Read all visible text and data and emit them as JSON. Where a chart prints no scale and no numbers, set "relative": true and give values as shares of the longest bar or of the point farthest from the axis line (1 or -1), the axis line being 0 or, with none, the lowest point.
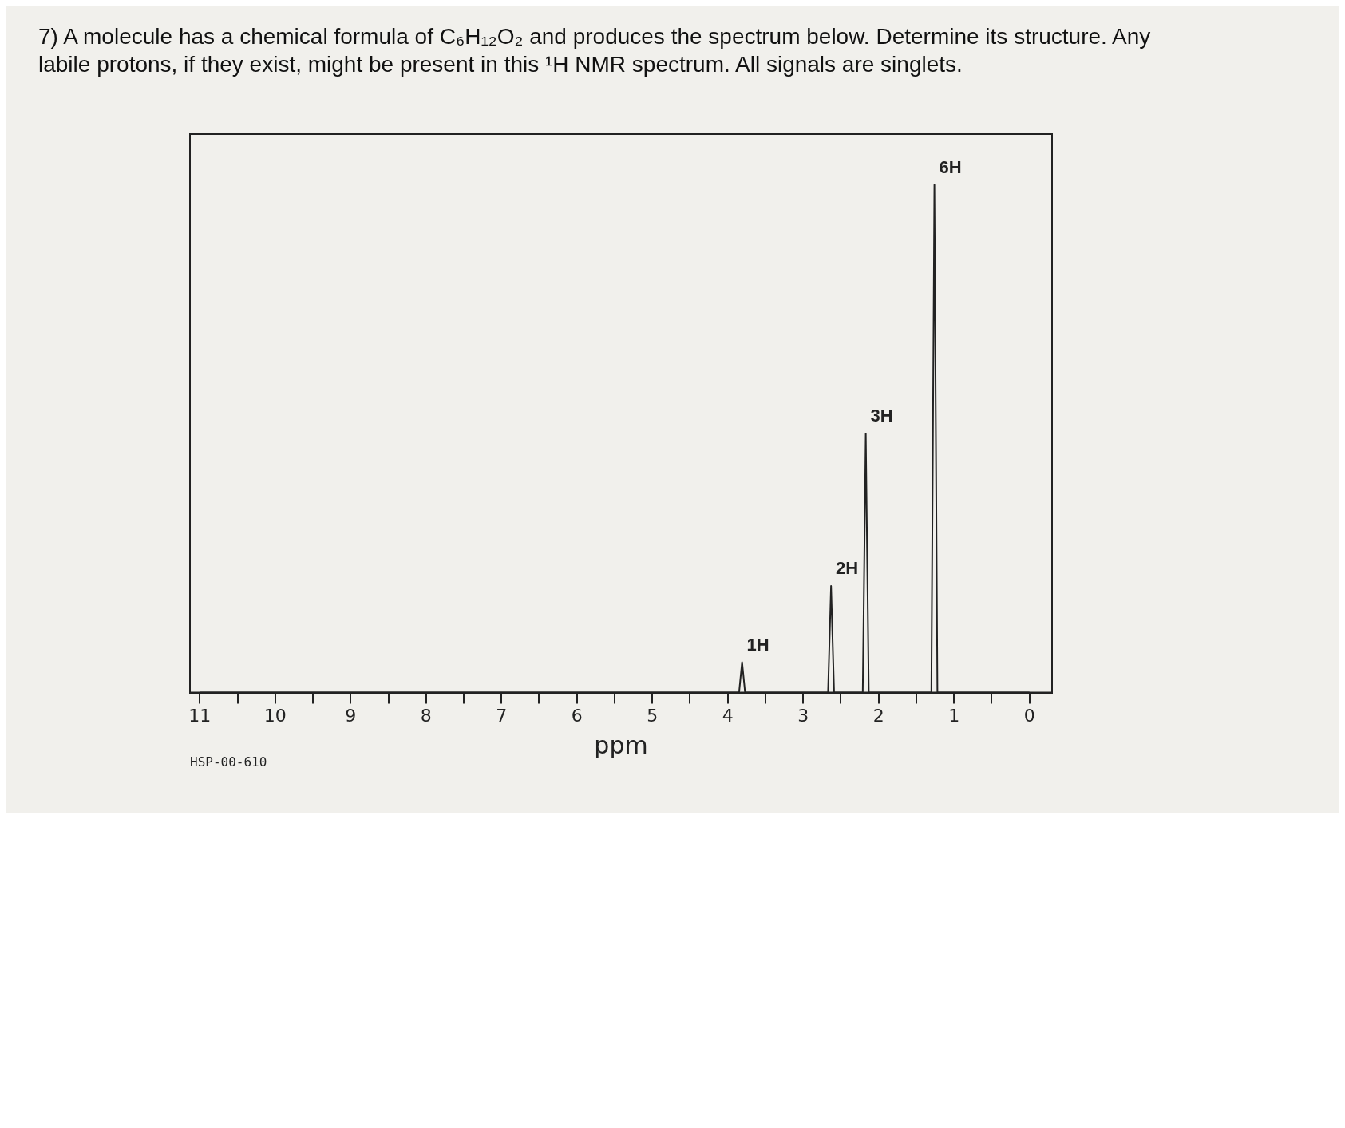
{
  "chart_data": {
    "type": "line",
    "title": "7) A molecule has a chemical formula of C₆H₁₂O₂ and produces the spectrum below. Determine its structure. Any labile protons, if they exist, might be present in this ¹H NMR spectrum. All signals are singlets.",
    "xlabel": "ppm",
    "x": [
      11,
      3.85,
      3.81,
      3.77,
      2.67,
      2.63,
      2.59,
      2.21,
      2.17,
      2.13,
      1.3,
      1.26,
      1.22,
      0
    ],
    "series": [
      {
        "color": "#222222",
        "values": [
          0,
          0,
          0.06,
          0,
          0,
          0.21,
          0,
          0,
          0.51,
          0,
          0,
          1,
          0,
          0
        ]
      }
    ],
    "relative": true,
    "xlim": [
      11.13,
      -0.3
    ],
    "xticks": [
      11,
      {
        "value": 10.5,
        "label": null
      },
      10,
      {
        "value": 9.5,
        "label": null
      },
      9,
      {
        "value": 8.5,
        "label": null
      },
      8,
      {
        "value": 7.5,
        "label": null
      },
      7,
      {
        "value": 6.5,
        "label": null
      },
      6,
      {
        "value": 5.5,
        "label": null
      },
      5,
      {
        "value": 4.5,
        "label": null
      },
      4,
      {
        "value": 3.5,
        "label": null
      },
      3,
      {
        "value": 2.5,
        "label": null
      },
      2,
      {
        "value": 1.5,
        "label": null
      },
      1,
      {
        "value": 0.5,
        "label": null
      },
      0
    ],
    "annotations": [
      {
        "text": "1H",
        "x": 3.81,
        "y": 0.06
      },
      {
        "text": "2H",
        "x": 2.63,
        "y": 0.21
      },
      {
        "text": "3H",
        "x": 2.17,
        "y": 0.51
      },
      {
        "text": "6H",
        "x": 1.26,
        "y": 1
      },
      "HSP-00-610"
    ],
    "grid": false,
    "legend": false,
    "marker": "none",
    "line_style": "solid"
  }
}
